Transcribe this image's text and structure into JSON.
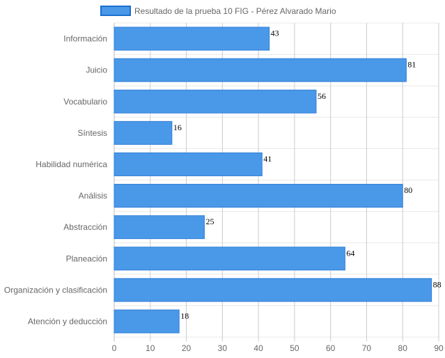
{
  "chart_data": {
    "type": "bar",
    "orientation": "horizontal",
    "categories": [
      "Información",
      "Juicio",
      "Vocabulario",
      "Síntesis",
      "Habilidad numérica",
      "Análisis",
      "Abstracción",
      "Planeación",
      "Organización y clasificación",
      "Atención y deducción"
    ],
    "series": [
      {
        "name": "Resultado de la prueba 10 FIG - Pérez Alvarado Mario",
        "values": [
          43,
          81,
          56,
          16,
          41,
          80,
          25,
          64,
          88,
          18
        ],
        "color": "#4a98e8"
      }
    ],
    "xlim": [
      0,
      90
    ],
    "xticks": [
      0,
      10,
      20,
      30,
      40,
      50,
      60,
      70,
      80,
      90
    ],
    "data_labels": true,
    "grid": true,
    "legend_position": "top"
  }
}
